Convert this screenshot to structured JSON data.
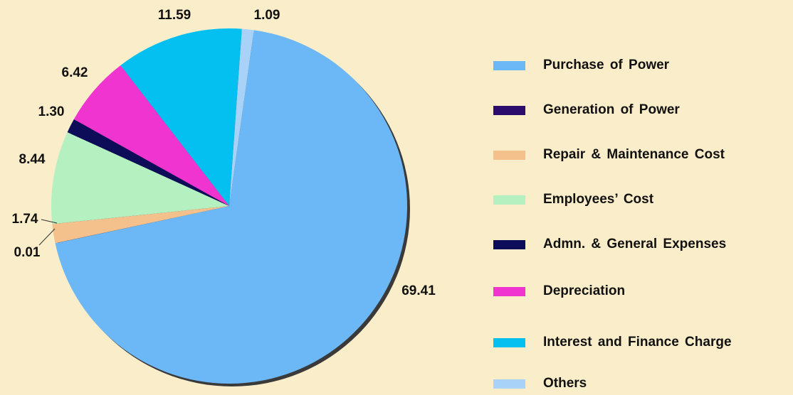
{
  "chart_data": {
    "type": "pie",
    "categories": [
      "Purchase of Power",
      "Generation of Power",
      "Repair & Maintenance Cost",
      "Employees’ Cost",
      "Admn. & General Expenses",
      "Depreciation",
      "Interest and Finance Charge",
      "Others"
    ],
    "values": [
      69.41,
      0.01,
      1.74,
      8.44,
      1.3,
      6.42,
      11.59,
      1.09
    ],
    "value_labels": [
      "69.41",
      "0.01",
      "1.74",
      "8.44",
      "1.30",
      "6.42",
      "11.59",
      "1.09"
    ],
    "colors": [
      "#6cb8f6",
      "#2c0c6c",
      "#f4c08c",
      "#b4f0c0",
      "#0c0c58",
      "#f034d0",
      "#04c0f0",
      "#a8d2f8"
    ],
    "legend": "right"
  }
}
